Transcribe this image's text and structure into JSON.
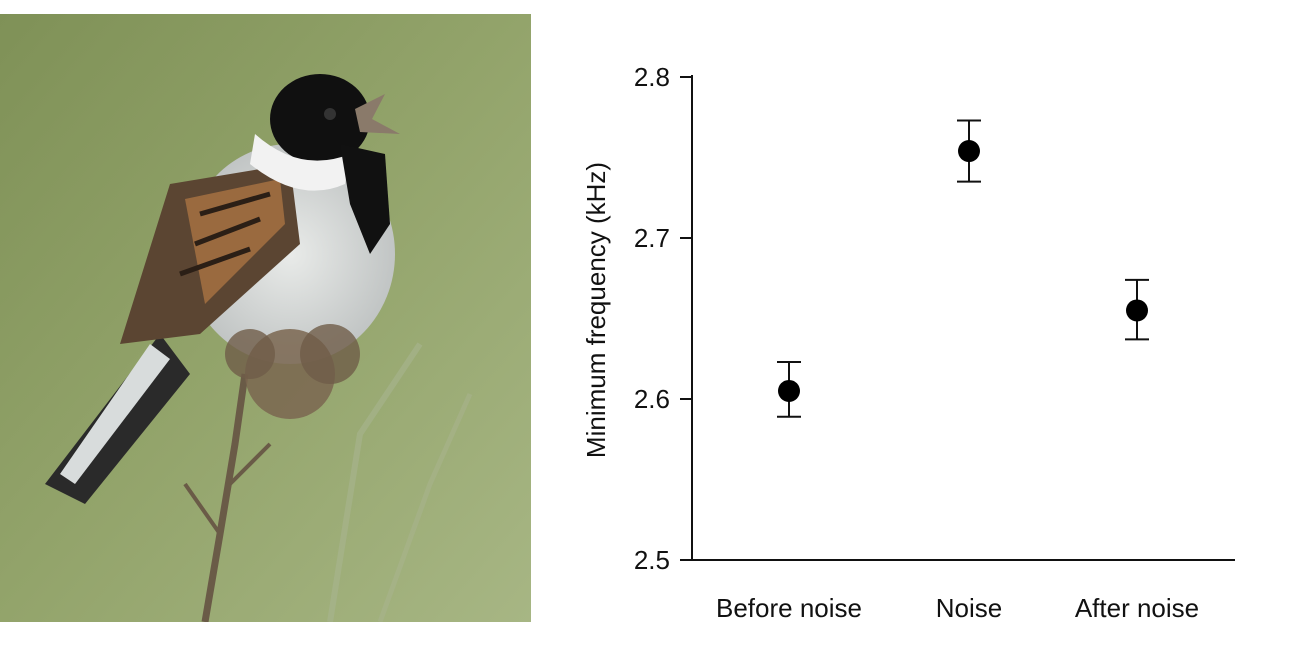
{
  "photo": {
    "subject": "reed-bunting-bird"
  },
  "chart_data": {
    "type": "scatter",
    "categories": [
      "Before noise",
      "Noise",
      "After noise"
    ],
    "values": [
      2.605,
      2.754,
      2.655
    ],
    "error_low": [
      2.589,
      2.735,
      2.637
    ],
    "error_high": [
      2.623,
      2.773,
      2.674
    ],
    "ylabel": "Minimum frequency (kHz)",
    "xlabel": "",
    "ylim": [
      2.5,
      2.8
    ],
    "yticks": [
      2.5,
      2.6,
      2.7,
      2.8
    ],
    "ytick_labels": [
      "2.5",
      "2.6",
      "2.7",
      "2.8"
    ],
    "grid": false,
    "colors": {
      "marker": "#000000",
      "axis": "#111111"
    }
  }
}
